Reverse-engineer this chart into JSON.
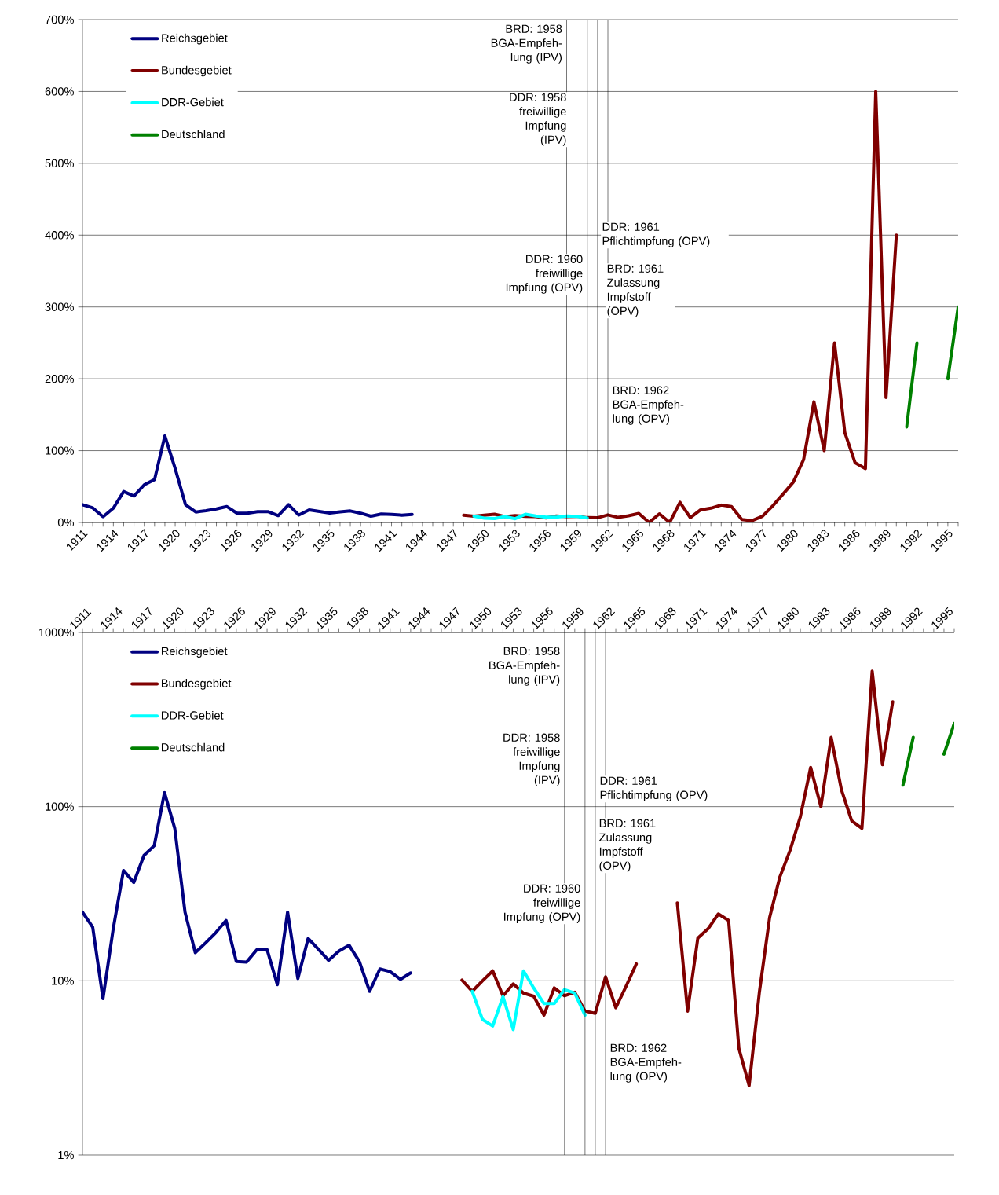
{
  "chart_data": [
    {
      "type": "line",
      "grid": "y",
      "legend": "top left",
      "xlim": [
        1911,
        1996
      ],
      "xticks": [
        1911,
        {
          "value": 1912,
          "label": null
        },
        {
          "value": 1913,
          "label": null
        },
        1914,
        {
          "value": 1915,
          "label": null
        },
        {
          "value": 1916,
          "label": null
        },
        1917,
        {
          "value": 1918,
          "label": null
        },
        {
          "value": 1919,
          "label": null
        },
        1920,
        {
          "value": 1921,
          "label": null
        },
        {
          "value": 1922,
          "label": null
        },
        1923,
        {
          "value": 1924,
          "label": null
        },
        {
          "value": 1925,
          "label": null
        },
        1926,
        {
          "value": 1927,
          "label": null
        },
        {
          "value": 1928,
          "label": null
        },
        1929,
        {
          "value": 1930,
          "label": null
        },
        {
          "value": 1931,
          "label": null
        },
        1932,
        {
          "value": 1933,
          "label": null
        },
        {
          "value": 1934,
          "label": null
        },
        1935,
        {
          "value": 1936,
          "label": null
        },
        {
          "value": 1937,
          "label": null
        },
        1938,
        {
          "value": 1939,
          "label": null
        },
        {
          "value": 1940,
          "label": null
        },
        1941,
        {
          "value": 1942,
          "label": null
        },
        {
          "value": 1943,
          "label": null
        },
        1944,
        {
          "value": 1945,
          "label": null
        },
        {
          "value": 1946,
          "label": null
        },
        1947,
        {
          "value": 1948,
          "label": null
        },
        {
          "value": 1949,
          "label": null
        },
        1950,
        {
          "value": 1951,
          "label": null
        },
        {
          "value": 1952,
          "label": null
        },
        1953,
        {
          "value": 1954,
          "label": null
        },
        {
          "value": 1955,
          "label": null
        },
        1956,
        {
          "value": 1957,
          "label": null
        },
        {
          "value": 1958,
          "label": null
        },
        1959,
        {
          "value": 1960,
          "label": null
        },
        {
          "value": 1961,
          "label": null
        },
        1962,
        {
          "value": 1963,
          "label": null
        },
        {
          "value": 1964,
          "label": null
        },
        1965,
        {
          "value": 1966,
          "label": null
        },
        {
          "value": 1967,
          "label": null
        },
        1968,
        {
          "value": 1969,
          "label": null
        },
        {
          "value": 1970,
          "label": null
        },
        1971,
        {
          "value": 1972,
          "label": null
        },
        {
          "value": 1973,
          "label": null
        },
        1974,
        {
          "value": 1975,
          "label": null
        },
        {
          "value": 1976,
          "label": null
        },
        1977,
        {
          "value": 1978,
          "label": null
        },
        {
          "value": 1979,
          "label": null
        },
        1980,
        {
          "value": 1981,
          "label": null
        },
        {
          "value": 1982,
          "label": null
        },
        1983,
        {
          "value": 1984,
          "label": null
        },
        {
          "value": 1985,
          "label": null
        },
        1986,
        {
          "value": 1987,
          "label": null
        },
        {
          "value": 1988,
          "label": null
        },
        1989,
        {
          "value": 1990,
          "label": null
        },
        {
          "value": 1991,
          "label": null
        },
        1992,
        {
          "value": 1993,
          "label": null
        },
        {
          "value": 1994,
          "label": null
        },
        1995,
        {
          "value": 1996,
          "label": null
        }
      ],
      "ylim": [
        0,
        700
      ],
      "yticks": [
        {
          "value": 0,
          "label": "0%"
        },
        {
          "value": 100,
          "label": "100%"
        },
        {
          "value": 200,
          "label": "200%"
        },
        {
          "value": 300,
          "label": "300%"
        },
        {
          "value": 400,
          "label": "400%"
        },
        {
          "value": 500,
          "label": "500%"
        },
        {
          "value": 600,
          "label": "600%"
        },
        {
          "value": 700,
          "label": "700%"
        }
      ],
      "series": [
        {
          "name": "Reichsgebiet",
          "color": "#000080",
          "x": [
            1911,
            1912,
            1913,
            1914,
            1915,
            1916,
            1917,
            1918,
            1919,
            1920,
            1921,
            1922,
            1923,
            1924,
            1925,
            1926,
            1927,
            1928,
            1929,
            1930,
            1931,
            1932,
            1933,
            1934,
            1935,
            1936,
            1937,
            1938,
            1939,
            1940,
            1941,
            1942,
            1943
          ],
          "values": [
            24.8,
            20.3,
            7.9,
            19.9,
            43,
            36.7,
            52.5,
            59.7,
            120.5,
            75,
            24.8,
            14.5,
            16.5,
            18.9,
            22.2,
            12.9,
            12.8,
            15.1,
            15.1,
            9.5,
            24.8,
            10.3,
            17.5,
            15.2,
            13.1,
            14.8,
            16.0,
            12.9,
            8.7,
            11.7,
            11.3,
            10.2,
            11.1
          ]
        },
        {
          "name": "Bundesgebiet",
          "color": "#800000",
          "x": [
            1948,
            1949,
            1950,
            1951,
            1952,
            1953,
            1954,
            1955,
            1956,
            1957,
            1958,
            1959,
            1960,
            1961,
            1962,
            1963,
            1964,
            1965,
            1966,
            1967,
            1968,
            1969,
            1970,
            1971,
            1972,
            1973,
            1974,
            1975,
            1976,
            1977,
            1978,
            1979,
            1980,
            1981,
            1982,
            1983,
            1984,
            1985,
            1986,
            1987,
            1988,
            1989,
            1990
          ],
          "values": [
            10.1,
            8.7,
            10.0,
            11.4,
            8.2,
            9.6,
            8.5,
            8.15,
            6.35,
            9.1,
            8.2,
            8.6,
            6.7,
            6.5,
            10.55,
            7.0,
            9.3,
            12.5,
            0,
            12,
            0,
            28,
            6.7,
            17.6,
            19.9,
            24.2,
            22.2,
            4.1,
            2.5,
            8.6,
            23.1,
            39.5,
            56.2,
            87.7,
            168,
            100,
            250,
            125,
            83,
            75,
            600,
            174,
            400
          ]
        },
        {
          "name": "DDR-Gebiet",
          "color": "#00ffff",
          "x": [
            1949,
            1950,
            1951,
            1952,
            1953,
            1954,
            1955,
            1956,
            1957,
            1958,
            1959,
            1960
          ],
          "values": [
            8.7,
            6.0,
            5.5,
            8.1,
            5.25,
            11.4,
            9.1,
            7.4,
            7.4,
            8.9,
            8.5,
            6.35
          ]
        },
        {
          "name": "Deutschland",
          "color": "#008000",
          "x": [
            1991,
            1992,
            1993,
            1994,
            1995,
            1996
          ],
          "values": [
            133,
            250,
            null,
            null,
            200,
            300
          ]
        }
      ],
      "ref_lines": [
        {
          "axis": "x",
          "value": 1958,
          "label": "BRD: 1958 BGA-Empfeh- lung (IPV)"
        },
        {
          "axis": "x",
          "value": 1960,
          "label": "DDR: 1960 freiwillige Impfung (OPV)"
        },
        {
          "axis": "x",
          "value": 1961,
          "label": "DDR: 1961 Pflichtimpfung (OPV)"
        },
        {
          "axis": "x",
          "value": 1962,
          "label": "BRD: 1962 BGA-Empfeh- lung (OPV)"
        }
      ],
      "annotations": [
        "DDR: 1958 freiwillige Impfung (IPV)",
        "BRD: 1961 Zulassung Impfstoff (OPV)"
      ]
    },
    {
      "type": "line",
      "grid": "y",
      "legend": "top left",
      "log": "y",
      "xlim": [
        1911,
        1996
      ],
      "xticks": [
        1911,
        {
          "value": 1912,
          "label": null
        },
        {
          "value": 1913,
          "label": null
        },
        1914,
        {
          "value": 1915,
          "label": null
        },
        {
          "value": 1916,
          "label": null
        },
        1917,
        {
          "value": 1918,
          "label": null
        },
        {
          "value": 1919,
          "label": null
        },
        1920,
        {
          "value": 1921,
          "label": null
        },
        {
          "value": 1922,
          "label": null
        },
        1923,
        {
          "value": 1924,
          "label": null
        },
        {
          "value": 1925,
          "label": null
        },
        1926,
        {
          "value": 1927,
          "label": null
        },
        {
          "value": 1928,
          "label": null
        },
        1929,
        {
          "value": 1930,
          "label": null
        },
        {
          "value": 1931,
          "label": null
        },
        1932,
        {
          "value": 1933,
          "label": null
        },
        {
          "value": 1934,
          "label": null
        },
        1935,
        {
          "value": 1936,
          "label": null
        },
        {
          "value": 1937,
          "label": null
        },
        1938,
        {
          "value": 1939,
          "label": null
        },
        {
          "value": 1940,
          "label": null
        },
        1941,
        {
          "value": 1942,
          "label": null
        },
        {
          "value": 1943,
          "label": null
        },
        1944,
        {
          "value": 1945,
          "label": null
        },
        {
          "value": 1946,
          "label": null
        },
        1947,
        {
          "value": 1948,
          "label": null
        },
        {
          "value": 1949,
          "label": null
        },
        1950,
        {
          "value": 1951,
          "label": null
        },
        {
          "value": 1952,
          "label": null
        },
        1953,
        {
          "value": 1954,
          "label": null
        },
        {
          "value": 1955,
          "label": null
        },
        1956,
        {
          "value": 1957,
          "label": null
        },
        {
          "value": 1958,
          "label": null
        },
        1959,
        {
          "value": 1960,
          "label": null
        },
        {
          "value": 1961,
          "label": null
        },
        1962,
        {
          "value": 1963,
          "label": null
        },
        {
          "value": 1964,
          "label": null
        },
        1965,
        {
          "value": 1966,
          "label": null
        },
        {
          "value": 1967,
          "label": null
        },
        1968,
        {
          "value": 1969,
          "label": null
        },
        {
          "value": 1970,
          "label": null
        },
        1971,
        {
          "value": 1972,
          "label": null
        },
        {
          "value": 1973,
          "label": null
        },
        1974,
        {
          "value": 1975,
          "label": null
        },
        {
          "value": 1976,
          "label": null
        },
        1977,
        {
          "value": 1978,
          "label": null
        },
        {
          "value": 1979,
          "label": null
        },
        1980,
        {
          "value": 1981,
          "label": null
        },
        {
          "value": 1982,
          "label": null
        },
        1983,
        {
          "value": 1984,
          "label": null
        },
        {
          "value": 1985,
          "label": null
        },
        1986,
        {
          "value": 1987,
          "label": null
        },
        {
          "value": 1988,
          "label": null
        },
        1989,
        {
          "value": 1990,
          "label": null
        },
        {
          "value": 1991,
          "label": null
        },
        1992,
        {
          "value": 1993,
          "label": null
        },
        {
          "value": 1994,
          "label": null
        },
        1995,
        {
          "value": 1996,
          "label": null
        }
      ],
      "ylim": [
        1,
        1000
      ],
      "yticks": [
        {
          "value": 1,
          "label": "1%"
        },
        {
          "value": 10,
          "label": "10%"
        },
        {
          "value": 100,
          "label": "100%"
        },
        {
          "value": 1000,
          "label": "1000%"
        }
      ],
      "series": [
        {
          "name": "Reichsgebiet",
          "color": "#000080",
          "x": [
            1911,
            1912,
            1913,
            1914,
            1915,
            1916,
            1917,
            1918,
            1919,
            1920,
            1921,
            1922,
            1923,
            1924,
            1925,
            1926,
            1927,
            1928,
            1929,
            1930,
            1931,
            1932,
            1933,
            1934,
            1935,
            1936,
            1937,
            1938,
            1939,
            1940,
            1941,
            1942,
            1943
          ],
          "values": [
            24.8,
            20.3,
            7.9,
            19.9,
            43,
            36.7,
            52.5,
            59.7,
            120.5,
            75,
            24.8,
            14.5,
            16.5,
            18.9,
            22.2,
            12.9,
            12.8,
            15.1,
            15.1,
            9.5,
            24.8,
            10.3,
            17.5,
            15.2,
            13.1,
            14.8,
            16.0,
            12.9,
            8.7,
            11.7,
            11.3,
            10.2,
            11.1
          ]
        },
        {
          "name": "Bundesgebiet",
          "color": "#800000",
          "x": [
            1948,
            1949,
            1950,
            1951,
            1952,
            1953,
            1954,
            1955,
            1956,
            1957,
            1958,
            1959,
            1960,
            1961,
            1962,
            1963,
            1964,
            1965,
            1966,
            1967,
            1968,
            1969,
            1970,
            1971,
            1972,
            1973,
            1974,
            1975,
            1976,
            1977,
            1978,
            1979,
            1980,
            1981,
            1982,
            1983,
            1984,
            1985,
            1986,
            1987,
            1988,
            1989,
            1990
          ],
          "values": [
            10.1,
            8.7,
            10.0,
            11.4,
            8.2,
            9.6,
            8.5,
            8.15,
            6.35,
            9.1,
            8.2,
            8.6,
            6.7,
            6.5,
            10.55,
            7.0,
            9.3,
            12.5,
            null,
            null,
            null,
            28,
            6.7,
            17.6,
            19.9,
            24.2,
            22.2,
            4.1,
            2.5,
            8.6,
            23.1,
            39.5,
            56.2,
            87.7,
            168,
            100,
            250,
            125,
            83,
            75,
            600,
            174,
            400
          ]
        },
        {
          "name": "DDR-Gebiet",
          "color": "#00ffff",
          "x": [
            1949,
            1950,
            1951,
            1952,
            1953,
            1954,
            1955,
            1956,
            1957,
            1958,
            1959,
            1960
          ],
          "values": [
            8.7,
            6.0,
            5.5,
            8.1,
            5.25,
            11.4,
            9.1,
            7.4,
            7.4,
            8.9,
            8.5,
            6.35
          ]
        },
        {
          "name": "Deutschland",
          "color": "#008000",
          "x": [
            1991,
            1992,
            1993,
            1994,
            1995,
            1996
          ],
          "values": [
            133,
            250,
            null,
            null,
            200,
            300
          ]
        }
      ],
      "ref_lines": [
        {
          "axis": "x",
          "value": 1958,
          "label": "BRD: 1958 BGA-Empfeh- lung (IPV)"
        },
        {
          "axis": "x",
          "value": 1960,
          "label": "DDR: 1960 freiwillige Impfung (OPV)"
        },
        {
          "axis": "x",
          "value": 1961,
          "label": "DDR: 1961 Pflichtimpfung (OPV)"
        },
        {
          "axis": "x",
          "value": 1962,
          "label": "BRD: 1962 BGA-Empfeh- lung (OPV)"
        }
      ],
      "annotations": [
        "DDR: 1958 freiwillige Impfung (IPV)",
        "BRD: 1961 Zulassung Impfstoff (OPV)"
      ]
    }
  ]
}
